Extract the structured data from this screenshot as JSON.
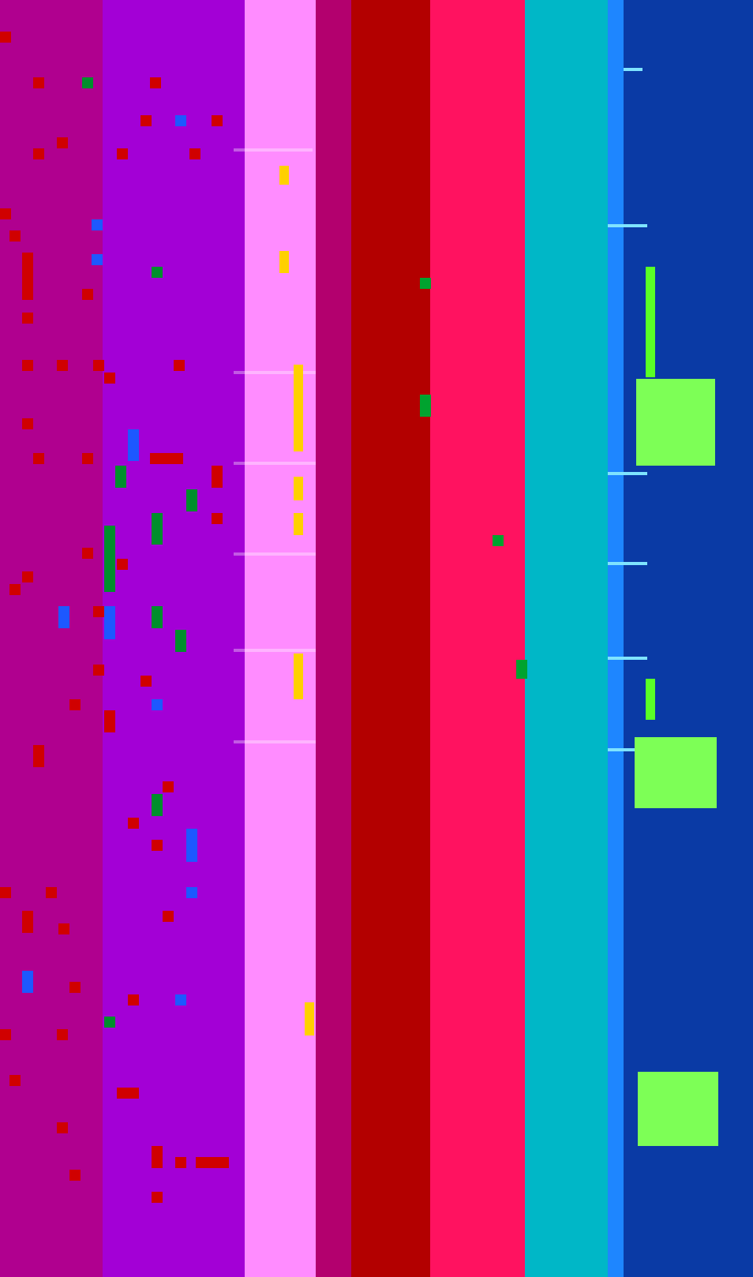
{
  "window": {
    "title": "",
    "palette": {
      "magenta": "#b0008f",
      "purple": "#9b00d2",
      "pink": "#ff8cff",
      "red": "#b40000",
      "hot_pink": "#ff0055",
      "cyan": "#00c4d0",
      "light_blue": "#1e88ff",
      "navy": "#0b3aa6"
    }
  },
  "left_labels": [
    "",
    "",
    "",
    "",
    "",
    "",
    "",
    "",
    ""
  ],
  "center_labels": [
    "",
    "",
    "",
    "",
    "",
    "",
    "",
    "",
    "",
    ""
  ],
  "right_panel": {
    "header": "",
    "items": [
      "",
      "",
      "",
      ""
    ]
  }
}
